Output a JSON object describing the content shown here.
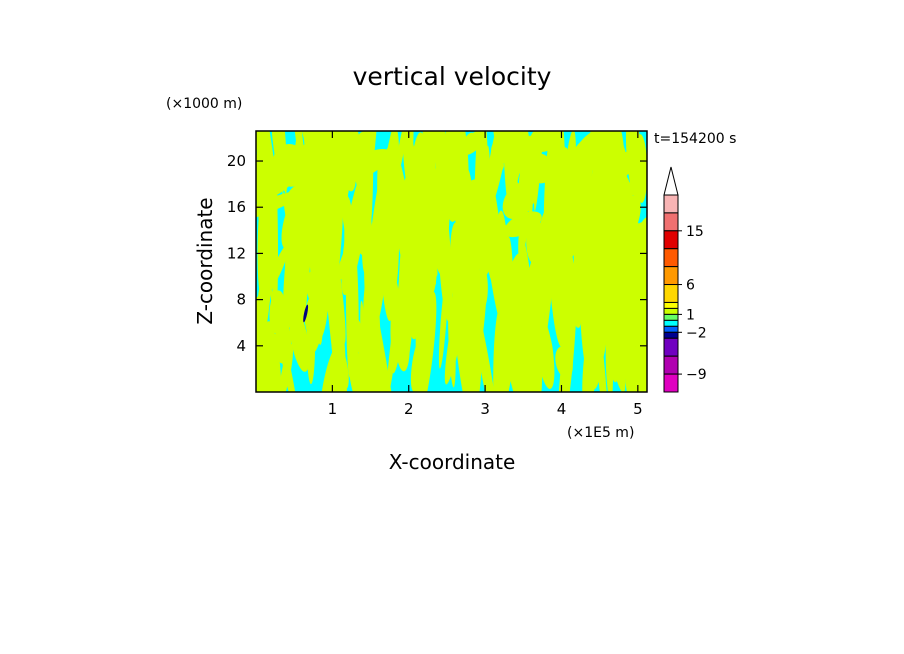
{
  "chart_data": {
    "type": "heatmap",
    "title": "vertical velocity",
    "xlabel": "X-coordinate",
    "ylabel": "Z-coordinate",
    "x_unit": "(×1E5 m)",
    "y_unit": "(×1000 m)",
    "time_label": "t=154200 s",
    "xlim": [
      0,
      5.12
    ],
    "ylim": [
      0,
      22.6
    ],
    "x_ticks": [
      1,
      2,
      3,
      4,
      5
    ],
    "y_ticks": [
      4,
      8,
      12,
      16,
      20
    ],
    "field_colors": {
      "negative": "#00ffff",
      "positive": "#ccff00",
      "accent": "#000080"
    },
    "colorbar": {
      "levels": [
        {
          "min": 18,
          "max": 21,
          "color": "#f8b4b4"
        },
        {
          "min": 15,
          "max": 18,
          "color": "#f07070"
        },
        {
          "min": 12,
          "max": 15,
          "color": "#e00000"
        },
        {
          "min": 9,
          "max": 12,
          "color": "#ff5a00"
        },
        {
          "min": 6,
          "max": 9,
          "color": "#ff9900"
        },
        {
          "min": 3,
          "max": 6,
          "color": "#ffd700"
        },
        {
          "min": 2,
          "max": 3,
          "color": "#ffff00"
        },
        {
          "min": 1,
          "max": 2,
          "color": "#ccff00"
        },
        {
          "min": 0,
          "max": 1,
          "color": "#66ff66"
        },
        {
          "min": -1,
          "max": 0,
          "color": "#00ffff"
        },
        {
          "min": -2,
          "max": -1,
          "color": "#0060ff"
        },
        {
          "min": -3,
          "max": -2,
          "color": "#000090"
        },
        {
          "min": -6,
          "max": -3,
          "color": "#7000c0"
        },
        {
          "min": -9,
          "max": -6,
          "color": "#b000b0"
        },
        {
          "min": -12,
          "max": -9,
          "color": "#e000c0"
        }
      ],
      "labels": [
        "15",
        "6",
        "1",
        "−2",
        "−9"
      ]
    }
  }
}
